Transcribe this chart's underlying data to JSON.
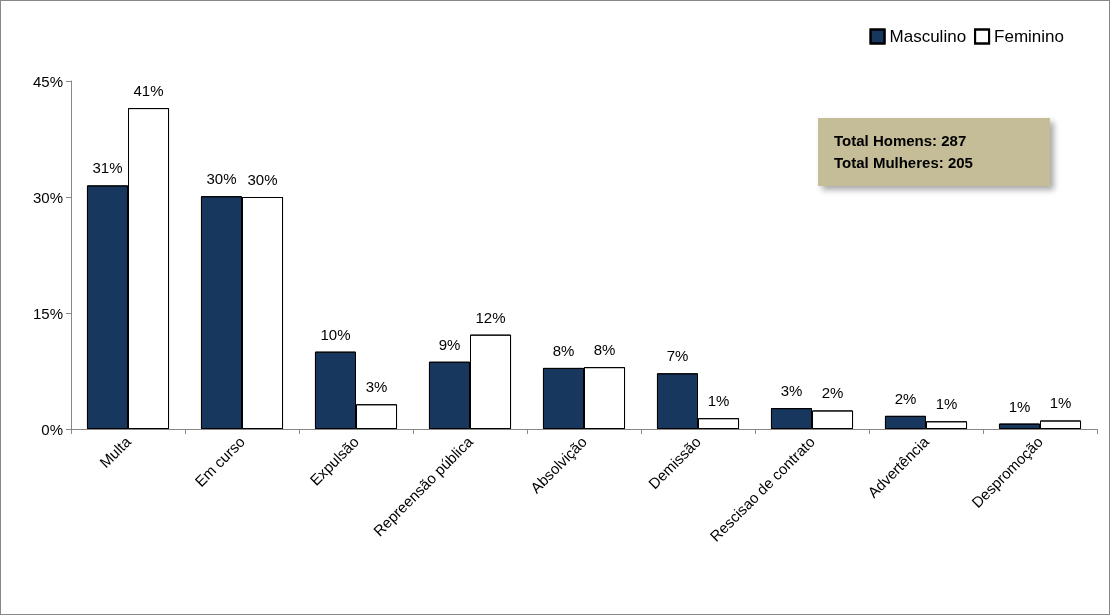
{
  "chart_data": {
    "type": "bar",
    "categories": [
      "Multa",
      "Em curso",
      "Expulsão",
      "Repreensão pública",
      "Absolvição",
      "Demissão",
      "Rescisao de contrato",
      "Advertência",
      "Despromoção"
    ],
    "series": [
      {
        "name": "Masculino",
        "color": "#17375e",
        "values": [
          31.5,
          30.1,
          10.0,
          8.7,
          7.9,
          7.2,
          2.7,
          1.7,
          0.7
        ],
        "value_labels": [
          "31%",
          "30%",
          "10%",
          "9%",
          "8%",
          "7%",
          "3%",
          "2%",
          "1%"
        ]
      },
      {
        "name": "Feminino",
        "color": "#ffffff",
        "values": [
          41.5,
          30.0,
          3.2,
          12.2,
          8.0,
          1.4,
          2.4,
          1.0,
          1.1
        ],
        "value_labels": [
          "41%",
          "30%",
          "3%",
          "12%",
          "8%",
          "1%",
          "2%",
          "1%",
          "1%"
        ]
      }
    ],
    "ylim": [
      0,
      45
    ],
    "yticks": [
      {
        "value": 0,
        "label": "0%"
      },
      {
        "value": 15,
        "label": "15%"
      },
      {
        "value": 30,
        "label": "30%"
      },
      {
        "value": 45,
        "label": "45%"
      }
    ],
    "grid": false,
    "legend": "top right",
    "annotations": [
      "Total Homens: 287",
      "Total Mulheres: 205"
    ]
  }
}
